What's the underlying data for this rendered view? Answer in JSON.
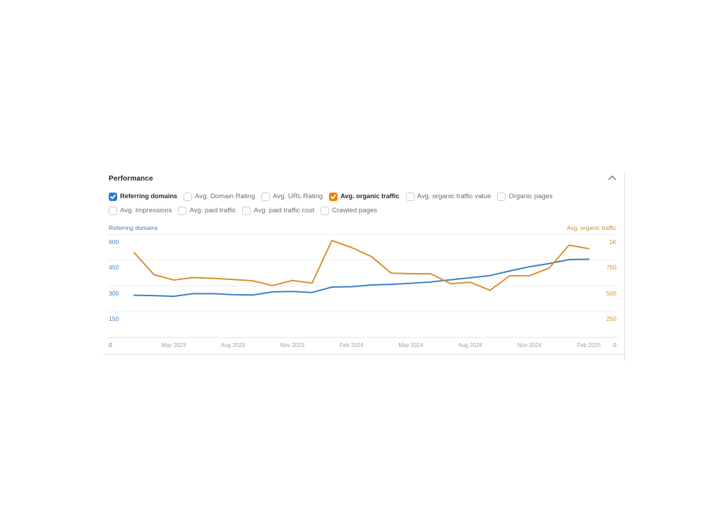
{
  "panel": {
    "title": "Performance",
    "collapse_icon": "chevron-up"
  },
  "metrics": {
    "row1": [
      {
        "label": "Referring domains",
        "checked": true,
        "check_color": "#2b7bd9"
      },
      {
        "label": "Avg. Domain Rating",
        "checked": false,
        "check_color": ""
      },
      {
        "label": "Avg. URL Rating",
        "checked": false,
        "check_color": ""
      },
      {
        "label": "Avg. organic traffic",
        "checked": true,
        "check_color": "#ed830a"
      },
      {
        "label": "Avg. organic traffic value",
        "checked": false,
        "check_color": ""
      },
      {
        "label": "Organic pages",
        "checked": false,
        "check_color": ""
      }
    ],
    "row2": [
      {
        "label": "Avg. Impressions",
        "checked": false,
        "check_color": ""
      },
      {
        "label": "Avg. paid traffic",
        "checked": false,
        "check_color": ""
      },
      {
        "label": "Avg. paid traffic cost",
        "checked": false,
        "check_color": ""
      },
      {
        "label": "Crawled pages",
        "checked": false,
        "check_color": ""
      }
    ]
  },
  "chart_data": {
    "type": "line",
    "x": [
      "Mar 2023",
      "Apr 2023",
      "May 2023",
      "Jun 2023",
      "Jul 2023",
      "Aug 2023",
      "Sep 2023",
      "Oct 2023",
      "Nov 2023",
      "Dec 2023",
      "Jan 2024",
      "Feb 2024",
      "Mar 2024",
      "Apr 2024",
      "May 2024",
      "Jun 2024",
      "Jul 2024",
      "Aug 2024",
      "Sep 2024",
      "Oct 2024",
      "Nov 2024",
      "Dec 2024",
      "Jan 2025",
      "Feb 2025"
    ],
    "x_tick_labels": [
      "May 2023",
      "Aug 2023",
      "Nov 2023",
      "Feb 2024",
      "May 2024",
      "Aug 2024",
      "Nov 2024",
      "Feb 2025"
    ],
    "series": [
      {
        "name": "Referring domains",
        "axis": "left",
        "color": "#3d82c4",
        "values": [
          246,
          244,
          240,
          256,
          255,
          250,
          248,
          266,
          268,
          262,
          294,
          296,
          306,
          310,
          316,
          324,
          336,
          348,
          361,
          388,
          412,
          431,
          454,
          456
        ]
      },
      {
        "name": "Avg. organic traffic",
        "axis": "right",
        "color": "#d8922f",
        "values": [
          825,
          610,
          558,
          582,
          575,
          563,
          551,
          505,
          554,
          528,
          942,
          873,
          786,
          625,
          620,
          619,
          523,
          536,
          458,
          599,
          600,
          675,
          897,
          862
        ]
      }
    ],
    "left_axis": {
      "title": "Referring domains",
      "range": [
        0,
        600
      ],
      "ticks": [
        0,
        150,
        300,
        450,
        600
      ],
      "tick_labels": [
        "0",
        "150",
        "300",
        "450",
        "600"
      ],
      "color": "#3d82c4"
    },
    "right_axis": {
      "title": "Avg. organic traffic",
      "range": [
        0,
        1000
      ],
      "ticks": [
        0,
        250,
        500,
        750,
        1000
      ],
      "tick_labels": [
        "0",
        "250",
        "500",
        "750",
        "1K"
      ],
      "color": "#cd8f2e"
    },
    "grid": true,
    "legend_position": "none"
  }
}
